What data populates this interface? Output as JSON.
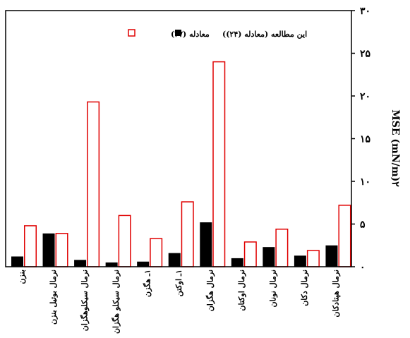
{
  "chart_data": {
    "type": "bar",
    "categories": [
      "بنزن",
      "نرمال بوتیل بنزن",
      "نرمال سیکلوهگزان",
      "نرمال سیکلو هگزان",
      "۱ـ هگزن",
      "۱ـ اوکتن",
      "نرمال هگزان",
      "نرمال اوکتان",
      "نرمال نونان",
      "نرمال دکان",
      "نرمال هپتادکان"
    ],
    "series": [
      {
        "name": "این مطالعه (معادله (۲۴))",
        "values": [
          1.2,
          3.9,
          0.8,
          0.5,
          0.6,
          1.6,
          5.2,
          1.0,
          2.3,
          1.3,
          2.5
        ]
      },
      {
        "name": "معادله (۲۷)",
        "values": [
          4.8,
          3.9,
          19.3,
          6.0,
          3.3,
          7.6,
          24.0,
          2.9,
          4.4,
          1.9,
          7.2
        ]
      }
    ],
    "ylabel": "MSE (mN/m)۲",
    "ylim": [
      0,
      30
    ],
    "yticks": [
      0,
      5,
      10,
      15,
      20,
      25,
      30
    ],
    "ytick_labels": [
      "۰",
      "۵",
      "۱۰",
      "۱۵",
      "۲۰",
      "۲۵",
      "۳۰"
    ],
    "legend_position": "top-center",
    "grid": false,
    "colors": {
      "series1": "#000000",
      "series2": "#e00000"
    }
  }
}
